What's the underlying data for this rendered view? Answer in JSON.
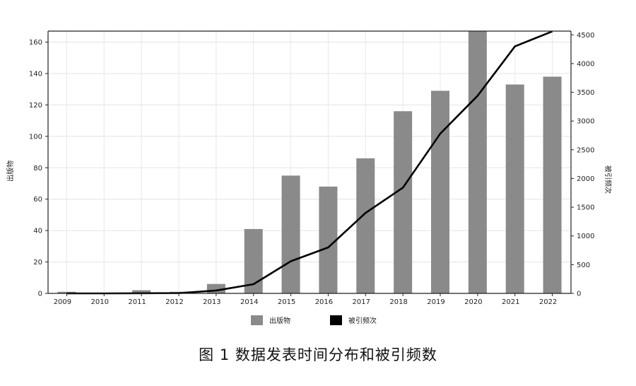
{
  "caption": "图 1   数据发表时间分布和被引频数",
  "chart_data": {
    "type": "bar",
    "categories": [
      "2009",
      "2010",
      "2011",
      "2012",
      "2013",
      "2014",
      "2015",
      "2016",
      "2017",
      "2018",
      "2019",
      "2020",
      "2021",
      "2022"
    ],
    "series": [
      {
        "name": "出版物",
        "type": "bar",
        "axis": "left",
        "color": "#8a8a8a",
        "values": [
          1,
          0,
          2,
          1,
          6,
          41,
          75,
          68,
          86,
          116,
          129,
          167,
          133,
          138
        ]
      },
      {
        "name": "被引频次",
        "type": "line",
        "axis": "right",
        "color": "#000000",
        "values": [
          0,
          0,
          2,
          5,
          50,
          160,
          560,
          800,
          1400,
          1840,
          2780,
          3440,
          4300,
          4560
        ]
      }
    ],
    "ylabel": "出版物",
    "y2label": "被引频次",
    "ylim": [
      0,
      167
    ],
    "y2lim": [
      0,
      4565
    ],
    "yticks": [
      0,
      20,
      40,
      60,
      80,
      100,
      120,
      140,
      160
    ],
    "y2ticks": [
      0,
      500,
      1000,
      1500,
      2000,
      2500,
      3000,
      3500,
      4000,
      4500
    ],
    "grid": true,
    "legend": "bottom-center"
  }
}
